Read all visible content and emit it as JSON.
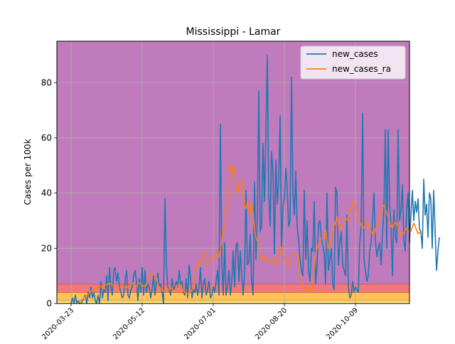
{
  "chart_data": {
    "type": "line",
    "title": "Mississippi - Lamar",
    "xlabel": "",
    "ylabel": "Cases per 100k",
    "x_start_date": "2020-03-18",
    "xlim_days": [
      -5,
      243
    ],
    "x_ticks": [
      {
        "day": 5,
        "label": "2020-03-23"
      },
      {
        "day": 55,
        "label": "2020-05-12"
      },
      {
        "day": 105,
        "label": "2020-07-01"
      },
      {
        "day": 155,
        "label": "2020-08-20"
      },
      {
        "day": 205,
        "label": "2020-10-09"
      }
    ],
    "ylim": [
      0,
      95
    ],
    "y_ticks": [
      0,
      20,
      40,
      60,
      80
    ],
    "grid": true,
    "legend_position": "top-right",
    "background_bands": [
      {
        "from": 0,
        "to": 1,
        "color": "#fff27a"
      },
      {
        "from": 1,
        "to": 4,
        "color": "#ffc35a"
      },
      {
        "from": 4,
        "to": 7,
        "color": "#f07a7a"
      },
      {
        "from": 7,
        "to": 95,
        "color": "#bf7bbb"
      }
    ],
    "band_edge_color": "#d9304f",
    "series": [
      {
        "name": "new_cases",
        "color": "#1f77b4",
        "start_day": 5,
        "values": [
          0,
          2,
          0,
          3,
          0,
          1,
          0,
          0,
          1,
          2,
          3,
          0,
          4,
          2,
          6,
          2,
          4,
          1,
          0,
          3,
          0,
          8,
          2,
          5,
          4,
          10,
          1,
          13,
          6,
          3,
          12,
          13,
          8,
          11,
          6,
          4,
          2,
          3,
          8,
          12,
          3,
          2,
          5,
          6,
          10,
          12,
          8,
          1,
          9,
          4,
          13,
          3,
          12,
          4,
          7,
          6,
          2,
          5,
          10,
          3,
          8,
          11,
          6,
          7,
          4,
          0,
          38,
          14,
          6,
          5,
          3,
          9,
          5,
          6,
          8,
          6,
          12,
          7,
          8,
          4,
          3,
          9,
          2,
          14,
          9,
          2,
          5,
          4,
          7,
          3,
          6,
          13,
          2,
          7,
          9,
          3,
          5,
          8,
          2,
          3,
          6,
          4,
          8,
          12,
          3,
          65,
          15,
          3,
          22,
          3,
          6,
          12,
          3,
          8,
          19,
          6,
          21,
          22,
          8,
          19,
          10,
          3,
          11,
          41,
          14,
          15,
          25,
          8,
          3,
          44,
          16,
          32,
          77,
          26,
          28,
          58,
          37,
          62,
          90,
          40,
          28,
          55,
          48,
          18,
          52,
          36,
          44,
          68,
          20,
          35,
          38,
          49,
          42,
          28,
          30,
          82,
          40,
          32,
          48,
          28,
          23,
          16,
          12,
          10,
          41,
          16,
          30,
          12,
          8,
          20,
          19,
          37,
          7,
          14,
          29,
          30,
          24,
          21,
          18,
          7,
          40,
          12,
          16,
          20,
          7,
          5,
          42,
          40,
          14,
          22,
          26,
          14,
          12,
          10,
          32,
          6,
          2,
          3,
          8,
          4,
          6,
          5,
          4,
          22,
          28,
          69,
          16,
          12,
          8,
          10,
          19,
          22,
          30,
          40,
          23,
          17,
          20,
          22,
          14,
          25,
          34,
          63,
          20,
          63,
          36,
          28,
          10,
          34,
          24,
          22,
          63,
          30,
          34,
          43,
          23,
          19,
          34,
          40,
          22,
          32,
          41,
          30,
          37,
          33,
          38,
          27,
          26,
          20,
          45,
          32,
          36,
          24,
          40,
          38,
          20,
          41,
          27,
          12,
          19,
          24
        ]
      },
      {
        "name": "new_cases_ra",
        "color": "#ff7f0e",
        "start_day": 10,
        "values": [
          0.5,
          0.8,
          1.2,
          1.5,
          2.0,
          2.5,
          3.0,
          3.2,
          3.8,
          4.5,
          4.8,
          5.0,
          4.6,
          5.5,
          6.0,
          6.3,
          6.2,
          5.5,
          5.8,
          6.8,
          7.0,
          6.9,
          7.4,
          7.0,
          6.8,
          6.5,
          6.2,
          5.8,
          5.5,
          5.8,
          6.0,
          6.3,
          5.9,
          6.0,
          6.5,
          5.8,
          6.2,
          6.8,
          7.4,
          7.0,
          6.5,
          6.2,
          7.0,
          7.5,
          6.8,
          6.2,
          6.5,
          6.0,
          7.0,
          9.0,
          10.0,
          10.5,
          10.2,
          10.6,
          10.3,
          9.5,
          7.0,
          6.0,
          5.3,
          5.0,
          4.6,
          4.6,
          4.4,
          4.8,
          5.3,
          5.7,
          5.1,
          4.6,
          4.9,
          5.6,
          6.6,
          6.9,
          6.5,
          5.5,
          4.6,
          4.1,
          3.7,
          3.5,
          3.8,
          4.3,
          5.0,
          5.7,
          8.8,
          13.0,
          14.5,
          13.5,
          15.4,
          17.0,
          17.8,
          18.4,
          14.0,
          14.6,
          14.9,
          15.6,
          16.8,
          16.0,
          17.4,
          17.9,
          18.3,
          16.9,
          19.3,
          23.0,
          27.0,
          27.4,
          31.9,
          36.2,
          40.6,
          50.0,
          47.3,
          50.0,
          47.9,
          41.6,
          39.8,
          43.1,
          44.5,
          44.0,
          38.2,
          35.6,
          34.4,
          37.0,
          34.0,
          32.5,
          36.5,
          33.0,
          27.5,
          24.0,
          22.5,
          20.5,
          17.0,
          15.8,
          16.0,
          17.2,
          15.0,
          14.7,
          15.6,
          16.0,
          16.4,
          15.2,
          14.1,
          14.2,
          17.5,
          18.7,
          21.0,
          20.0,
          17.5,
          16.5,
          14.8,
          14.0,
          13.1,
          14.8,
          17.5,
          17.8,
          17.9,
          17.3,
          17.5,
          17.1,
          8.0,
          7.5,
          6.8,
          5.5,
          5.0,
          5.0,
          5.8,
          4.2,
          5.1,
          7.9,
          12.5,
          18.6,
          20.0,
          21.5,
          22.6,
          23.4,
          24.2,
          24.9,
          26.6,
          22.8,
          19.9,
          21.5,
          23.7,
          25.8,
          28.1,
          29.6,
          31.5,
          28.5,
          27.2,
          26.8,
          27.9,
          29.6,
          31.0,
          30.5,
          29.8,
          32.6,
          34.9,
          36.6,
          37.0,
          34.4,
          32.9,
          30.8,
          29.8,
          28.5,
          27.0,
          27.5,
          28.7,
          29.8,
          28.8,
          26.4,
          26.1,
          25.2,
          24.8,
          26.9,
          28.5,
          30.6,
          31.8,
          33.5,
          35.0,
          35.6,
          34.0,
          32.7,
          31.3,
          29.5,
          27.9,
          27.4,
          28.3,
          29.8,
          29.0,
          27.9,
          25.8,
          24.3,
          24.8,
          25.7,
          26.5,
          27.3,
          26.5,
          25.6,
          26.1,
          27.6,
          29.1,
          28.0,
          26.5,
          25.3,
          25.7,
          25.3,
          24.6
        ]
      }
    ]
  }
}
